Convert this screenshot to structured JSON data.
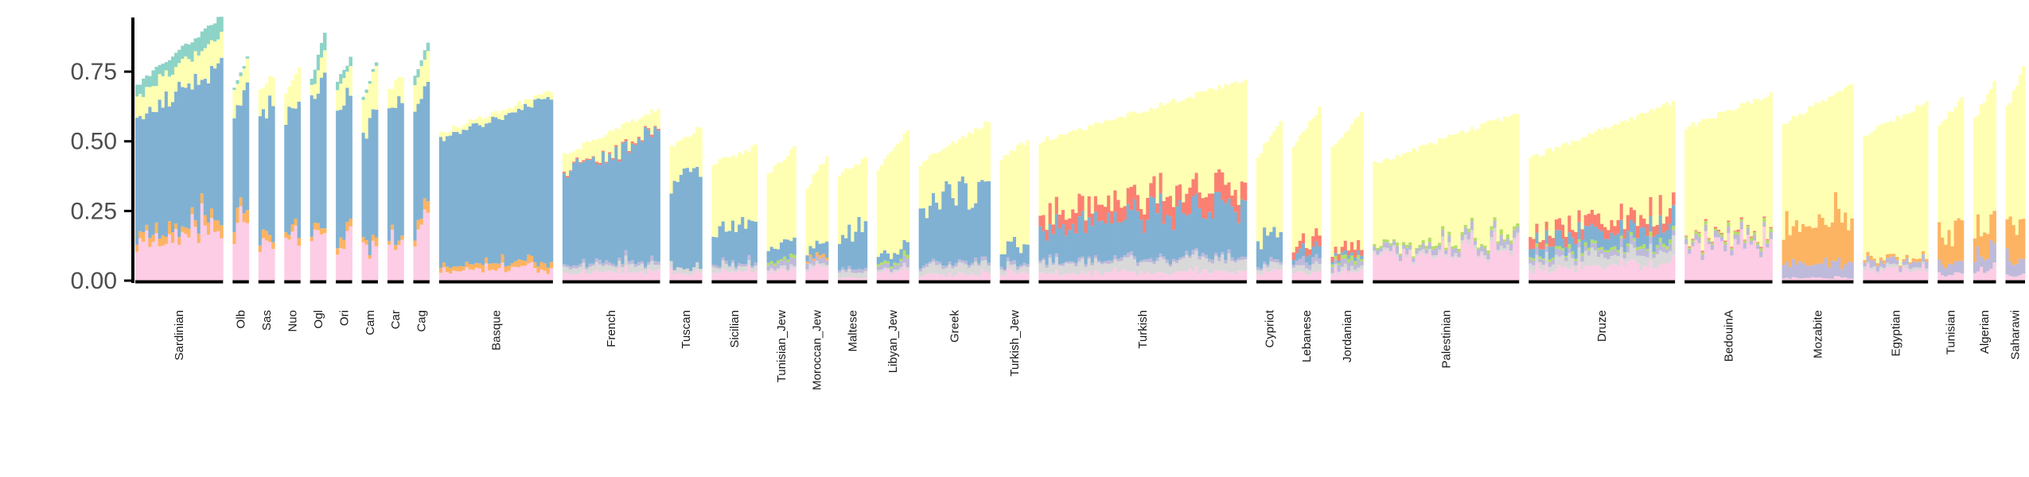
{
  "chart_data": {
    "type": "bar",
    "stacked": true,
    "ylim": [
      0,
      0.95
    ],
    "yticks": [
      0.0,
      0.25,
      0.5,
      0.75
    ],
    "ytick_labels": [
      "0.00",
      "0.25",
      "0.50",
      "0.75"
    ],
    "grid": false,
    "legend": "none",
    "components": [
      {
        "key": "pink",
        "color": "#fccde5"
      },
      {
        "key": "gray",
        "color": "#d9d9d9"
      },
      {
        "key": "lavender",
        "color": "#bebada"
      },
      {
        "key": "orange",
        "color": "#fdb462"
      },
      {
        "key": "green",
        "color": "#b3de69"
      },
      {
        "key": "blue",
        "color": "#80b1d3"
      },
      {
        "key": "red",
        "color": "#fb8072"
      },
      {
        "key": "yellow",
        "color": "#ffffb3"
      },
      {
        "key": "teal",
        "color": "#8dd3c7"
      }
    ],
    "groups": [
      {
        "label": "Sardinian",
        "n": 27,
        "total": [
          0.7,
          0.95
        ],
        "profile": {
          "pink": 0.16,
          "orange": 0.03,
          "blue": 0.45,
          "yellow": 0.09,
          "teal": 0.05
        }
      },
      {
        "label": "Olb",
        "n": 5,
        "total": [
          0.7,
          0.8
        ],
        "profile": {
          "pink": 0.2,
          "orange": 0.04,
          "blue": 0.4,
          "yellow": 0.1,
          "teal": 0.01
        }
      },
      {
        "label": "Sas",
        "n": 5,
        "total": [
          0.68,
          0.74
        ],
        "profile": {
          "pink": 0.14,
          "orange": 0.03,
          "blue": 0.43,
          "yellow": 0.09
        }
      },
      {
        "label": "Nuo",
        "n": 5,
        "total": [
          0.68,
          0.76
        ],
        "profile": {
          "pink": 0.15,
          "orange": 0.02,
          "blue": 0.46,
          "yellow": 0.08
        }
      },
      {
        "label": "Ogl",
        "n": 5,
        "total": [
          0.72,
          0.89
        ],
        "profile": {
          "pink": 0.14,
          "orange": 0.02,
          "blue": 0.52,
          "yellow": 0.06,
          "teal": 0.04
        }
      },
      {
        "label": "Ori",
        "n": 5,
        "total": [
          0.72,
          0.8
        ],
        "profile": {
          "pink": 0.15,
          "orange": 0.03,
          "blue": 0.45,
          "yellow": 0.08,
          "teal": 0.03
        }
      },
      {
        "label": "Cam",
        "n": 5,
        "total": [
          0.66,
          0.78
        ],
        "profile": {
          "pink": 0.13,
          "orange": 0.02,
          "blue": 0.4,
          "yellow": 0.11,
          "teal": 0.01
        }
      },
      {
        "label": "Car",
        "n": 5,
        "total": [
          0.68,
          0.74
        ],
        "profile": {
          "pink": 0.14,
          "orange": 0.02,
          "blue": 0.45,
          "yellow": 0.1
        }
      },
      {
        "label": "Cag",
        "n": 5,
        "total": [
          0.74,
          0.85
        ],
        "profile": {
          "pink": 0.16,
          "orange": 0.03,
          "blue": 0.43,
          "yellow": 0.09,
          "teal": 0.03
        }
      },
      {
        "label": "Basque",
        "n": 35,
        "total": [
          0.53,
          0.68
        ],
        "profile": {
          "pink": 0.04,
          "orange": 0.02,
          "blue": 0.51,
          "yellow": 0.02
        }
      },
      {
        "label": "French",
        "n": 30,
        "total": [
          0.45,
          0.62
        ],
        "profile": {
          "pink": 0.03,
          "gray": 0.02,
          "lavender": 0.01,
          "blue": 0.38,
          "yellow": 0.06,
          "red": 0.005
        }
      },
      {
        "label": "Tuscan",
        "n": 10,
        "total": [
          0.48,
          0.55
        ],
        "profile": {
          "pink": 0.03,
          "gray": 0.02,
          "blue": 0.3,
          "yellow": 0.14
        }
      },
      {
        "label": "Sicilian",
        "n": 14,
        "total": [
          0.42,
          0.48
        ],
        "profile": {
          "pink": 0.03,
          "gray": 0.02,
          "lavender": 0.01,
          "blue": 0.14,
          "yellow": 0.26
        }
      },
      {
        "label": "Tunisian_Jew",
        "n": 9,
        "total": [
          0.38,
          0.48
        ],
        "profile": {
          "pink": 0.04,
          "gray": 0.01,
          "lavender": 0.02,
          "green": 0.01,
          "blue": 0.06,
          "yellow": 0.27
        }
      },
      {
        "label": "Moroccan_Jew",
        "n": 7,
        "total": [
          0.34,
          0.44
        ],
        "profile": {
          "pink": 0.05,
          "gray": 0.01,
          "lavender": 0.02,
          "orange": 0.01,
          "blue": 0.04,
          "yellow": 0.27
        }
      },
      {
        "label": "Maltese",
        "n": 9,
        "total": [
          0.38,
          0.44
        ],
        "profile": {
          "pink": 0.01,
          "gray": 0.02,
          "lavender": 0.01,
          "blue": 0.16,
          "yellow": 0.22
        }
      },
      {
        "label": "Libyan_Jew",
        "n": 10,
        "total": [
          0.4,
          0.54
        ],
        "profile": {
          "pink": 0.04,
          "gray": 0.01,
          "lavender": 0.02,
          "green": 0.01,
          "blue": 0.03,
          "yellow": 0.36
        }
      },
      {
        "label": "Greek",
        "n": 22,
        "total": [
          0.42,
          0.57
        ],
        "profile": {
          "pink": 0.02,
          "gray": 0.03,
          "lavender": 0.01,
          "blue": 0.23,
          "yellow": 0.18
        }
      },
      {
        "label": "Turkish_Jew",
        "n": 9,
        "total": [
          0.44,
          0.5
        ],
        "profile": {
          "pink": 0.03,
          "gray": 0.02,
          "lavender": 0.01,
          "blue": 0.06,
          "yellow": 0.36
        }
      },
      {
        "label": "Turkish",
        "n": 64,
        "total": [
          0.5,
          0.72
        ],
        "profile": {
          "pink": 0.03,
          "gray": 0.04,
          "lavender": 0.01,
          "blue": 0.15,
          "red": 0.06,
          "yellow": 0.31
        }
      },
      {
        "label": "Cypriot",
        "n": 8,
        "total": [
          0.45,
          0.57
        ],
        "profile": {
          "pink": 0.03,
          "gray": 0.02,
          "lavender": 0.01,
          "blue": 0.1,
          "yellow": 0.36
        }
      },
      {
        "label": "Lebanese",
        "n": 9,
        "total": [
          0.48,
          0.62
        ],
        "profile": {
          "pink": 0.03,
          "gray": 0.02,
          "lavender": 0.02,
          "blue": 0.03,
          "red": 0.03,
          "yellow": 0.4
        }
      },
      {
        "label": "Jordanian",
        "n": 10,
        "total": [
          0.48,
          0.6
        ],
        "profile": {
          "pink": 0.03,
          "gray": 0.01,
          "lavender": 0.02,
          "green": 0.01,
          "red": 0.02,
          "blue": 0.01,
          "yellow": 0.42
        }
      },
      {
        "label": "Palestinian",
        "n": 45,
        "total": [
          0.42,
          0.6
        ],
        "profile": {
          "pink": 0.1,
          "gray": 0.01,
          "lavender": 0.02,
          "green": 0.01,
          "yellow": 0.37
        }
      },
      {
        "label": "Druze",
        "n": 45,
        "total": [
          0.44,
          0.64
        ],
        "profile": {
          "pink": 0.05,
          "gray": 0.04,
          "lavender": 0.02,
          "blue": 0.05,
          "red": 0.04,
          "green": 0.01,
          "yellow": 0.34
        }
      },
      {
        "label": "BedouinA",
        "n": 27,
        "total": [
          0.55,
          0.67
        ],
        "profile": {
          "pink": 0.13,
          "lavender": 0.02,
          "red": 0.005,
          "green": 0.01,
          "yellow": 0.45
        }
      },
      {
        "label": "Mozabite",
        "n": 22,
        "total": [
          0.56,
          0.71
        ],
        "profile": {
          "orange": 0.15,
          "lavender": 0.05,
          "pink": 0.01,
          "yellow": 0.43
        }
      },
      {
        "label": "Egyptian",
        "n": 20,
        "total": [
          0.52,
          0.64
        ],
        "profile": {
          "pink": 0.04,
          "gray": 0.01,
          "lavender": 0.02,
          "orange": 0.01,
          "yellow": 0.5
        }
      },
      {
        "label": "Tunisian",
        "n": 8,
        "total": [
          0.56,
          0.65
        ],
        "profile": {
          "orange": 0.1,
          "pink": 0.02,
          "lavender": 0.04,
          "yellow": 0.46
        }
      },
      {
        "label": "Algerian",
        "n": 7,
        "total": [
          0.58,
          0.72
        ],
        "profile": {
          "orange": 0.08,
          "pink": 0.04,
          "lavender": 0.06,
          "yellow": 0.45
        }
      },
      {
        "label": "Saharawi",
        "n": 6,
        "total": [
          0.62,
          0.76
        ],
        "profile": {
          "orange": 0.12,
          "lavender": 0.06,
          "pink": 0.02,
          "yellow": 0.47
        }
      }
    ]
  }
}
